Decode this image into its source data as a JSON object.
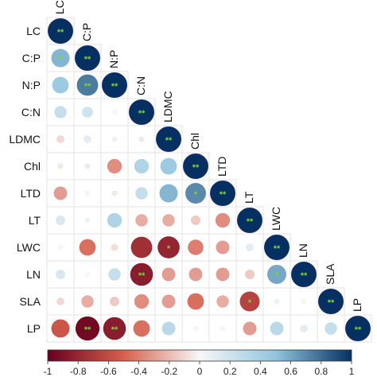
{
  "chart_data": {
    "type": "heatmap",
    "subtype": "lower-triangular correlation matrix with circle glyphs",
    "variables": [
      "LC",
      "C:P",
      "N:P",
      "C:N",
      "LDMC",
      "Chl",
      "LTD",
      "LT",
      "LWC",
      "LN",
      "SLA",
      "LP"
    ],
    "matrix": [
      [
        1.0
      ],
      [
        0.55,
        1.0
      ],
      [
        0.45,
        0.75,
        1.0
      ],
      [
        0.25,
        0.2,
        0.02,
        1.0
      ],
      [
        -0.1,
        0.1,
        0.05,
        -0.05,
        1.0
      ],
      [
        -0.05,
        -0.05,
        -0.35,
        0.35,
        0.45,
        1.0
      ],
      [
        -0.3,
        0.02,
        -0.05,
        0.25,
        0.55,
        0.7,
        1.0
      ],
      [
        0.15,
        0.05,
        0.35,
        -0.25,
        -0.25,
        -0.15,
        -0.35,
        1.0
      ],
      [
        0.02,
        -0.45,
        -0.08,
        -0.75,
        -0.8,
        -0.4,
        -0.3,
        0.1,
        1.0
      ],
      [
        0.15,
        0.0,
        0.25,
        -0.85,
        -0.3,
        -0.3,
        -0.3,
        -0.15,
        0.6,
        1.0
      ],
      [
        -0.1,
        -0.25,
        -0.15,
        -0.35,
        -0.3,
        -0.45,
        -0.25,
        -0.65,
        0.05,
        0.02,
        1.0
      ],
      [
        -0.55,
        -0.95,
        -0.85,
        -0.45,
        0.3,
        0.02,
        0.02,
        -0.3,
        0.3,
        0.1,
        0.25,
        1.0
      ]
    ],
    "significance": [
      [
        "**"
      ],
      [
        "*",
        "**"
      ],
      [
        "",
        "**",
        "**"
      ],
      [
        "",
        "",
        "",
        "**"
      ],
      [
        "",
        "",
        "",
        "",
        "**"
      ],
      [
        "",
        "",
        "",
        "",
        "",
        "**"
      ],
      [
        "",
        "",
        "",
        "",
        "",
        "*",
        "**"
      ],
      [
        "",
        "",
        "",
        "",
        "",
        "",
        "",
        "**"
      ],
      [
        "",
        "",
        "",
        "",
        "*",
        "",
        "",
        "",
        "**"
      ],
      [
        "",
        "",
        "",
        "**",
        "",
        "",
        "",
        "",
        "*",
        "**"
      ],
      [
        "",
        "",
        "",
        "",
        "",
        "",
        "",
        "*",
        "",
        "",
        "**"
      ],
      [
        "",
        "**",
        "**",
        "",
        "",
        "",
        "",
        "",
        "",
        "",
        "",
        "**"
      ]
    ],
    "colorbar": {
      "range": [
        -1,
        1
      ],
      "tick_labels": [
        "-1",
        "-0.8",
        "-0.6",
        "-0.4",
        "-0.2",
        "0",
        "0.2",
        "0.4",
        "0.6",
        "0.8",
        "1"
      ],
      "colors": {
        "neg_strong": "#67001f",
        "neg_mid": "#d6604d",
        "zero": "#f7f7f7",
        "pos_mid": "#92c5de",
        "pos_strong": "#053061"
      }
    },
    "star_color": "#7fd13b",
    "grid": true,
    "legend_position": "bottom"
  }
}
